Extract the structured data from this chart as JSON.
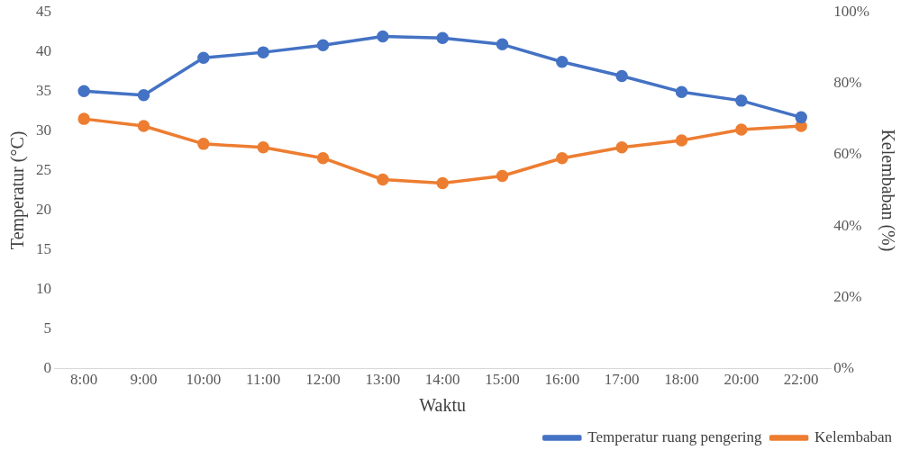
{
  "chart_data": {
    "type": "line",
    "xlabel": "Waktu",
    "ylabel": "Temperatur (°C)",
    "y2label": "Kelembaban (%)",
    "categories": [
      "8:00",
      "9:00",
      "10:00",
      "11:00",
      "12:00",
      "13:00",
      "14:00",
      "15:00",
      "16:00",
      "17:00",
      "18:00",
      "20:00",
      "22:00"
    ],
    "series": [
      {
        "name": "Temperatur ruang pengering",
        "color": "#4472c4",
        "values": [
          35,
          34.5,
          39.2,
          39.9,
          40.8,
          41.9,
          41.7,
          40.9,
          38.7,
          36.9,
          34.9,
          33.8,
          31.7
        ]
      },
      {
        "name": "Kelembaban",
        "color": "#ed7d31",
        "axis": "y2",
        "values": [
          70,
          68,
          63,
          62,
          59,
          53,
          52,
          54,
          59,
          62,
          64,
          67,
          68
        ]
      }
    ],
    "ylim": [
      0,
      45
    ],
    "yticks": [
      0,
      5,
      10,
      15,
      20,
      25,
      30,
      35,
      40,
      45
    ],
    "y2lim": [
      0,
      100
    ],
    "y2ticks": [
      {
        "value": 0,
        "label": "0%"
      },
      {
        "value": 20,
        "label": "20%"
      },
      {
        "value": 40,
        "label": "40%"
      },
      {
        "value": 60,
        "label": "60%"
      },
      {
        "value": 80,
        "label": "80%"
      },
      {
        "value": 100,
        "label": "100%"
      }
    ],
    "grid": false,
    "legend": "bottom right",
    "marker": "circle",
    "line_style": "solid"
  }
}
